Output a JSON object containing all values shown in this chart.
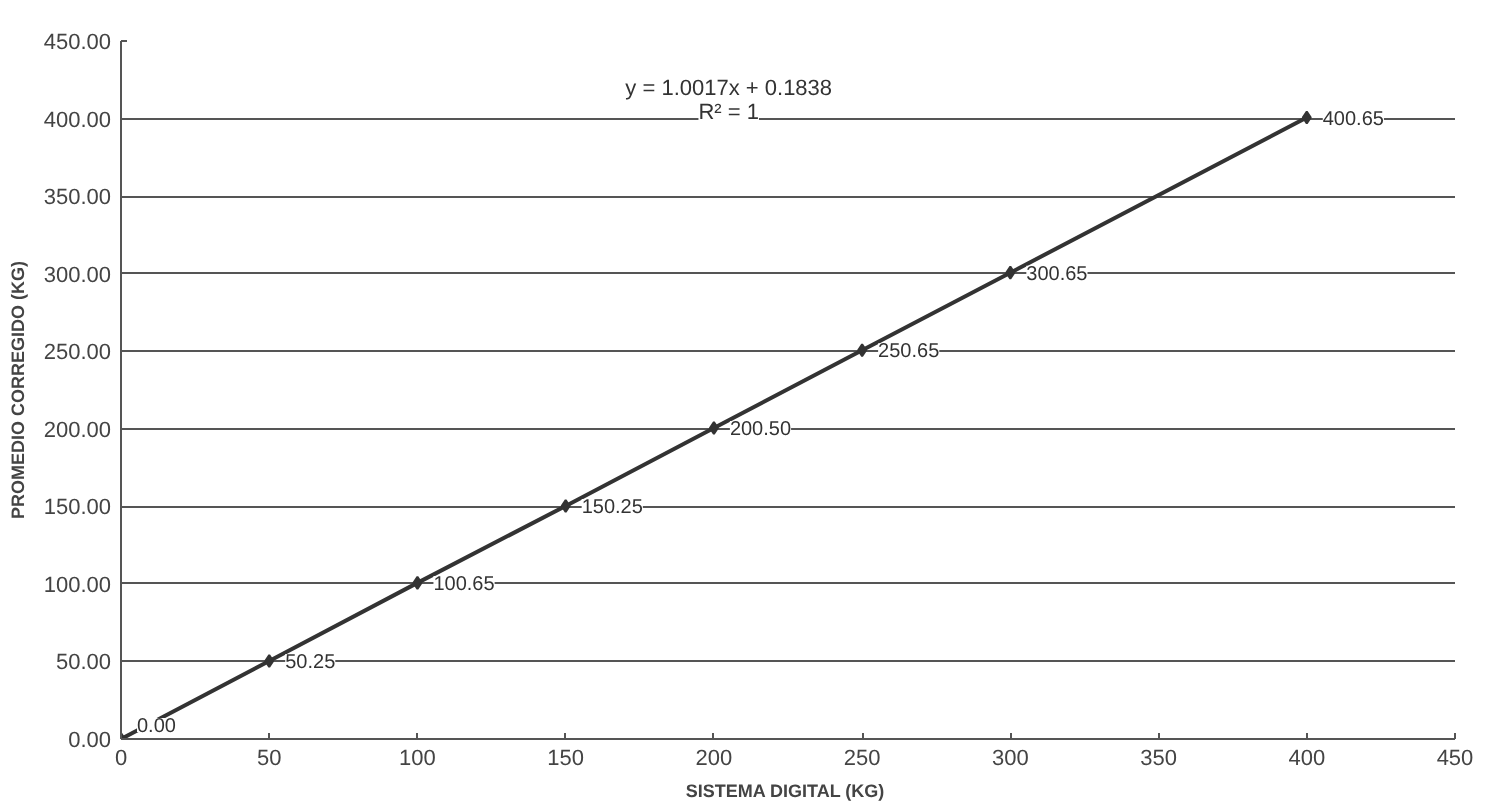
{
  "chart_data": {
    "type": "line",
    "xlabel": "SISTEMA DIGITAL  (KG)",
    "ylabel": "PROMEDIO CORREGIDO (KG)",
    "x": [
      0,
      50,
      100,
      150,
      200,
      250,
      300,
      400
    ],
    "series": [
      {
        "color": "#333333",
        "values": [
          0.0,
          50.25,
          100.65,
          150.25,
          200.5,
          250.65,
          300.65,
          400.65
        ],
        "value_labels": [
          "0.00",
          "50.25",
          "100.65",
          "150.25",
          "200.50",
          "250.65",
          "300.65",
          "400.65"
        ]
      }
    ],
    "xlim": [
      0,
      450
    ],
    "xticks": [
      0,
      50,
      100,
      150,
      200,
      250,
      300,
      350,
      400,
      450
    ],
    "ylim": [
      0,
      450
    ],
    "yticks": [
      {
        "value": 0,
        "label": "0.00"
      },
      {
        "value": 50,
        "label": "50.00"
      },
      {
        "value": 100,
        "label": "100.00"
      },
      {
        "value": 150,
        "label": "150.00"
      },
      {
        "value": 200,
        "label": "200.00"
      },
      {
        "value": 250,
        "label": "250.00"
      },
      {
        "value": 300,
        "label": "300.00"
      },
      {
        "value": 350,
        "label": "350.00"
      },
      {
        "value": 400,
        "label": "400.00"
      },
      {
        "value": 450,
        "label": "450.00"
      }
    ],
    "annotations": [
      "y = 1.0017x + 0.1838",
      "R² = 1"
    ],
    "grid": "y",
    "marker": "diamond",
    "line_style": "solid"
  }
}
